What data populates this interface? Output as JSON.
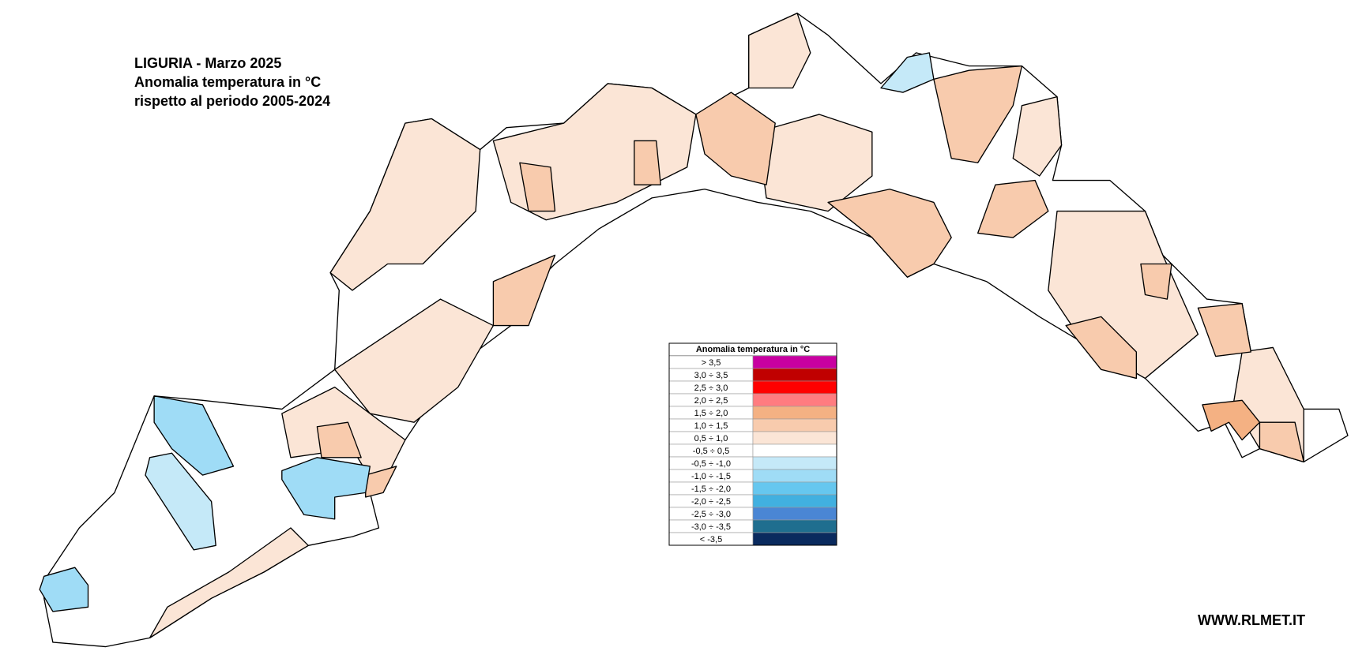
{
  "header": {
    "line1": "LIGURIA - Marzo 2025",
    "line2": "Anomalia temperatura in °C",
    "line3": "rispetto al periodo 2005-2024"
  },
  "legend": {
    "title": "Anomalia temperatura in °C",
    "items": [
      {
        "label": "> 3,5",
        "color": "#c800a1"
      },
      {
        "label": "3,0 ÷ 3,5",
        "color": "#c00000"
      },
      {
        "label": "2,5 ÷ 3,0",
        "color": "#ff0000"
      },
      {
        "label": "2,0 ÷ 2,5",
        "color": "#ff7c80"
      },
      {
        "label": "1,5 ÷ 2,0",
        "color": "#f4b183"
      },
      {
        "label": "1,0 ÷ 1,5",
        "color": "#f8cbad"
      },
      {
        "label": "0,5 ÷ 1,0",
        "color": "#fbe5d6"
      },
      {
        "label": "-0,5 ÷ 0,5",
        "color": "#ffffff"
      },
      {
        "label": "-0,5 ÷ -1,0",
        "color": "#c5e9f8"
      },
      {
        "label": "-1,0 ÷ -1,5",
        "color": "#9fdcf6"
      },
      {
        "label": "-1,5 ÷ -2,0",
        "color": "#66c7ef"
      },
      {
        "label": "-2,0 ÷ -2,5",
        "color": "#41b0e0"
      },
      {
        "label": "-2,5 ÷ -3,0",
        "color": "#4a86d4"
      },
      {
        "label": "-3,0 ÷ -3,5",
        "color": "#1f6e8f"
      },
      {
        "label": "< -3,5",
        "color": "#0a2a5e"
      }
    ]
  },
  "footer": {
    "watermark": "WWW.RLMET.IT"
  }
}
